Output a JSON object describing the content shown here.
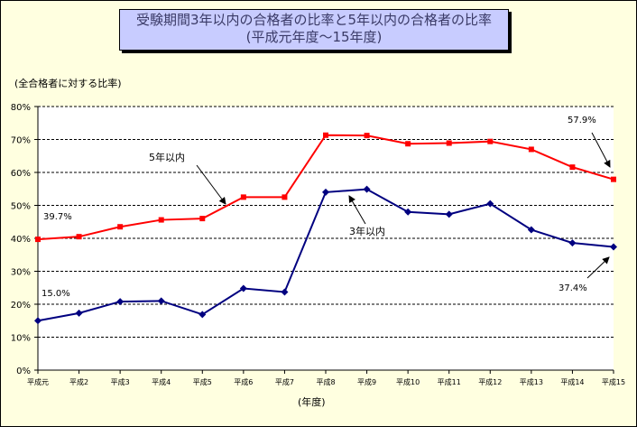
{
  "chart_data": {
    "type": "line",
    "title": "受験期間3年以内の合格者の比率と5年以内の合格者の比率",
    "subtitle": "(平成元年度～15年度)",
    "ylabel": "(全合格者に対する比率)",
    "xlabel": "(年度)",
    "ylim": [
      0,
      80
    ],
    "yticks": [
      "0%",
      "10%",
      "20%",
      "30%",
      "40%",
      "50%",
      "60%",
      "70%",
      "80%"
    ],
    "categories": [
      "平成元",
      "平成2",
      "平成3",
      "平成4",
      "平成5",
      "平成6",
      "平成7",
      "平成8",
      "平成9",
      "平成10",
      "平成11",
      "平成12",
      "平成13",
      "平成14",
      "平成15"
    ],
    "grid": true,
    "series": [
      {
        "name": "5年以内",
        "color": "#ff0000",
        "marker": "square",
        "values": [
          39.7,
          40.5,
          43.5,
          45.6,
          46.0,
          52.5,
          52.5,
          71.3,
          71.2,
          68.7,
          68.9,
          69.4,
          67.0,
          61.6,
          57.9
        ]
      },
      {
        "name": "3年以内",
        "color": "#000080",
        "marker": "diamond",
        "values": [
          15.0,
          17.3,
          20.8,
          21.0,
          16.9,
          24.8,
          23.7,
          54.0,
          54.9,
          48.0,
          47.3,
          50.5,
          42.6,
          38.6,
          37.4
        ]
      }
    ],
    "data_labels": [
      "39.7%",
      "57.9%",
      "15.0%",
      "37.4%"
    ]
  }
}
